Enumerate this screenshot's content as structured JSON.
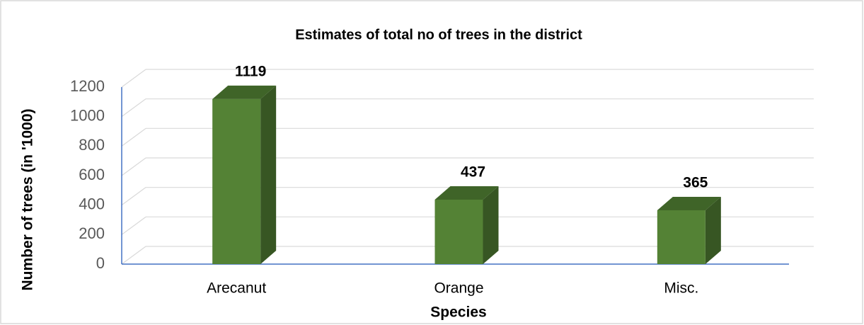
{
  "chart_data": {
    "type": "bar3d",
    "title": "Estimates of total no of trees in the district",
    "x_label": "Species",
    "y_label": "Number of trees (in '1000)",
    "categories": [
      "Arecanut",
      "Orange",
      "Misc."
    ],
    "values": [
      1119,
      437,
      365
    ],
    "color": "#548235",
    "ylim": [
      0,
      1200
    ],
    "yticks": [
      0,
      200,
      400,
      600,
      800,
      1000,
      1200
    ],
    "grid": true
  }
}
